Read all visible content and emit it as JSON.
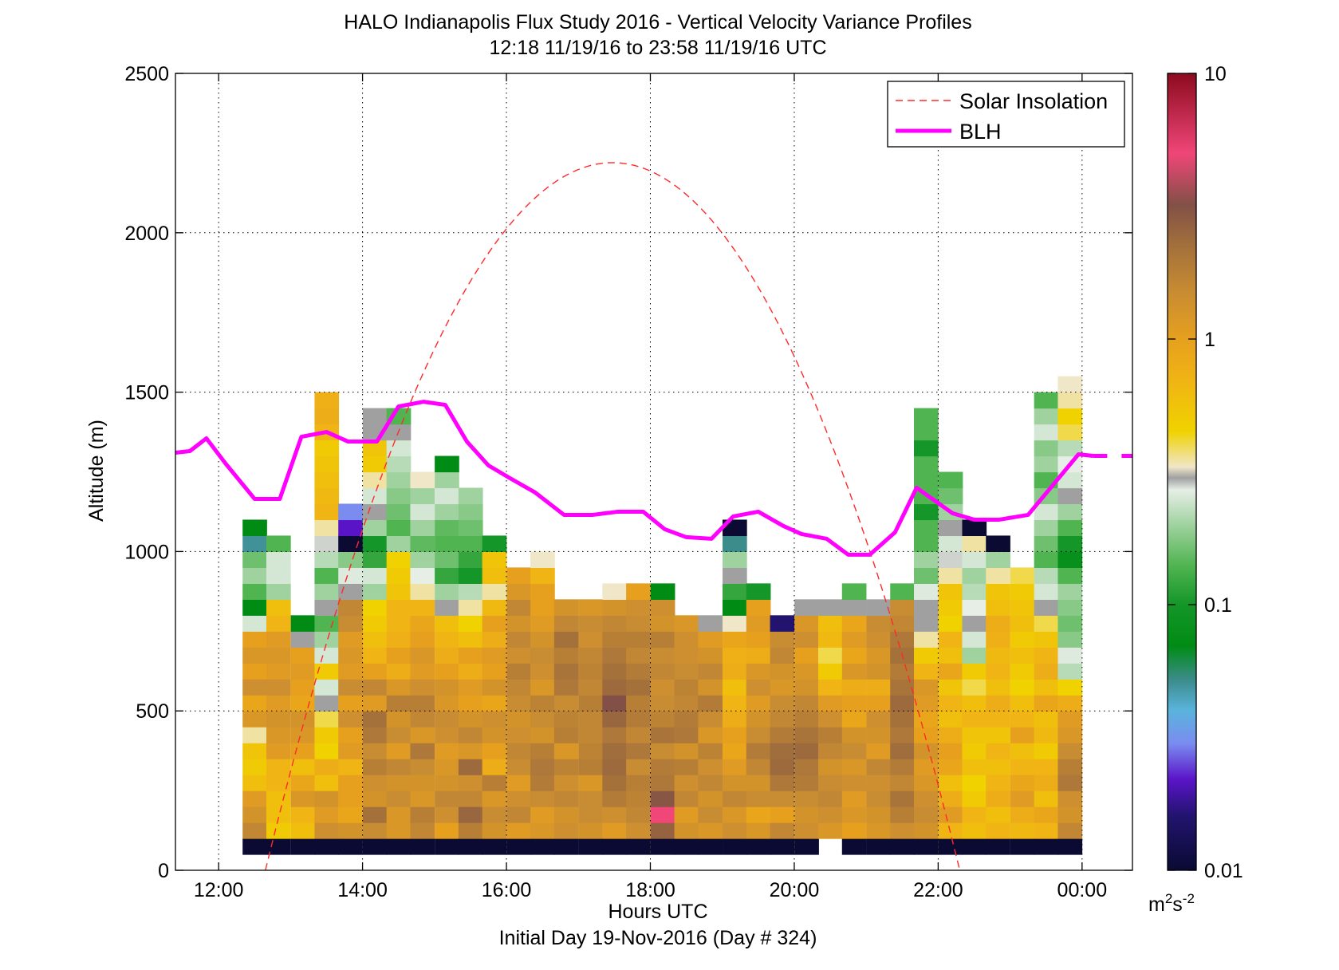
{
  "chart_data": {
    "type": "heatmap",
    "title": "HALO Indianapolis Flux Study 2016 - Vertical Velocity Variance Profiles",
    "subtitle": "12:18 11/19/16 to 23:58 11/19/16  UTC",
    "xlabel": "Hours UTC",
    "xlabel2": "Initial Day 19-Nov-2016 (Day # 324)",
    "ylabel": "Altitude (m)",
    "x_range_hours": [
      11.4,
      24.7
    ],
    "ylim": [
      0,
      2500
    ],
    "x_ticks": [
      {
        "value": 12,
        "label": "12:00"
      },
      {
        "value": 14,
        "label": "14:00"
      },
      {
        "value": 16,
        "label": "16:00"
      },
      {
        "value": 18,
        "label": "18:00"
      },
      {
        "value": 20,
        "label": "20:00"
      },
      {
        "value": 22,
        "label": "22:00"
      },
      {
        "value": 24,
        "label": "00:00"
      }
    ],
    "y_ticks": [
      0,
      500,
      1000,
      1500,
      2000,
      2500
    ],
    "grid": true,
    "legend_placement": "top-right",
    "legend": [
      {
        "name": "Solar Insolation",
        "color": "#ff2a2a",
        "style": "dashed"
      },
      {
        "name": "BLH",
        "color": "#ff00ff",
        "style": "solid"
      }
    ],
    "colorbar": {
      "scale": "log",
      "range": [
        0.01,
        10
      ],
      "tick_labels": [
        "0.01",
        "0.1",
        "1",
        "10"
      ],
      "unit_base": "m",
      "unit_sup1": "2",
      "unit_mid": "s",
      "unit_sup2": "-2",
      "stops": [
        {
          "v": 0.01,
          "c": "#0a0a33"
        },
        {
          "v": 0.016,
          "c": "#22146e"
        },
        {
          "v": 0.022,
          "c": "#5a14c8"
        },
        {
          "v": 0.03,
          "c": "#7a8cf0"
        },
        {
          "v": 0.04,
          "c": "#5ab4dc"
        },
        {
          "v": 0.052,
          "c": "#3c8c8c"
        },
        {
          "v": 0.07,
          "c": "#008c14"
        },
        {
          "v": 0.1,
          "c": "#149628"
        },
        {
          "v": 0.14,
          "c": "#50b450"
        },
        {
          "v": 0.2,
          "c": "#a0d2a0"
        },
        {
          "v": 0.27,
          "c": "#e6eee6"
        },
        {
          "v": 0.3,
          "c": "#a0a0a0"
        },
        {
          "v": 0.33,
          "c": "#f0e6c8"
        },
        {
          "v": 0.45,
          "c": "#f0d200"
        },
        {
          "v": 0.7,
          "c": "#f0b414"
        },
        {
          "v": 1.0,
          "c": "#e6a01e"
        },
        {
          "v": 1.5,
          "c": "#c88c32"
        },
        {
          "v": 2.3,
          "c": "#a06e3c"
        },
        {
          "v": 3.2,
          "c": "#825046"
        },
        {
          "v": 5.0,
          "c": "#f04678"
        },
        {
          "v": 10.0,
          "c": "#8c0a1e"
        }
      ]
    },
    "grid_cells": {
      "altitude_bin_m": 50,
      "time_bin_hours": 0.3333,
      "note_first_bin_center_m": 75,
      "columns": [
        {
          "t": 12.5,
          "v": [
            0.01,
            1.6,
            1.3,
            1.1,
            0.6,
            0.5,
            0.55,
            0.35,
            1.2,
            0.9,
            1.4,
            1.0,
            1.2,
            1.0,
            0.25,
            0.07,
            0.14,
            0.2,
            0.16,
            0.05,
            0.07
          ]
        },
        {
          "t": 12.83,
          "v": [
            0.01,
            0.5,
            0.6,
            0.6,
            0.7,
            0.7,
            1.1,
            1.2,
            1.3,
            1.1,
            1.4,
            1.1,
            1.2,
            1.1,
            0.7,
            0.6,
            0.2,
            0.25,
            0.25,
            0.14
          ]
        },
        {
          "t": 13.17,
          "v": [
            0.01,
            0.6,
            0.7,
            1.2,
            0.9,
            0.6,
            1.0,
            1.2,
            1.3,
            0.9,
            1.0,
            1.1,
            1.0,
            0.3,
            0.07
          ]
        },
        {
          "t": 13.5,
          "v": [
            0.01,
            1.4,
            1.1,
            1.3,
            0.6,
            0.8,
            0.45,
            0.5,
            0.4,
            0.3,
            0.25,
            0.5,
            0.25,
            0.2,
            0.14,
            0.3,
            0.2,
            0.14,
            0.22,
            0.28,
            0.35,
            0.7,
            0.65,
            0.6,
            0.55,
            0.5,
            0.7,
            0.8,
            0.75
          ]
        },
        {
          "t": 13.83,
          "v": [
            0.01,
            1.3,
            0.9,
            1.0,
            1.0,
            0.7,
            1.1,
            1.0,
            1.4,
            1.0,
            1.5,
            1.1,
            1.2,
            1.1,
            1.5,
            1.6,
            0.3,
            0.26,
            0.18,
            0.01,
            0.022,
            0.03
          ]
        },
        {
          "t": 14.17,
          "v": [
            0.01,
            1.5,
            2.2,
            1.3,
            1.4,
            1.8,
            1.5,
            2.0,
            2.2,
            1.1,
            1.6,
            1.0,
            0.7,
            0.6,
            0.5,
            0.45,
            0.2,
            0.25,
            0.12,
            0.1,
            0.2,
            0.3,
            0.25,
            0.35,
            0.5,
            0.55,
            0.3,
            0.3
          ]
        },
        {
          "t": 14.5,
          "v": [
            0.01,
            1.2,
            1.2,
            1.5,
            1.3,
            1.6,
            1.1,
            1.5,
            1.3,
            1.8,
            1.2,
            0.8,
            1.0,
            0.75,
            0.7,
            0.7,
            0.55,
            0.5,
            0.45,
            0.2,
            0.14,
            0.16,
            0.18,
            0.2,
            0.22,
            0.25,
            0.3,
            0.14
          ]
        },
        {
          "t": 14.83,
          "v": [
            0.01,
            1.6,
            1.8,
            1.2,
            1.3,
            1.5,
            2.0,
            1.2,
            1.6,
            1.8,
            1.4,
            1.1,
            1.2,
            1.0,
            0.9,
            0.7,
            0.35,
            0.27,
            0.2,
            0.15,
            0.2,
            0.25,
            0.2,
            0.33
          ]
        },
        {
          "t": 15.17,
          "v": [
            0.01,
            1.0,
            1.4,
            1.6,
            1.3,
            1.2,
            1.1,
            1.4,
            1.5,
            1.2,
            1.3,
            1.0,
            0.8,
            0.7,
            0.6,
            0.3,
            0.2,
            0.12,
            0.16,
            0.14,
            0.15,
            0.2,
            0.25,
            0.2,
            0.07
          ]
        },
        {
          "t": 15.5,
          "v": [
            0.01,
            1.8,
            2.5,
            1.6,
            1.4,
            2.4,
            1.2,
            1.6,
            1.3,
            1.0,
            1.1,
            0.8,
            1.0,
            0.6,
            0.45,
            0.35,
            0.22,
            0.1,
            0.12,
            0.14,
            0.16,
            0.18,
            0.2
          ]
        },
        {
          "t": 15.83,
          "v": [
            0.01,
            1.3,
            1.5,
            1.2,
            1.8,
            0.8,
            1.0,
            1.3,
            1.4,
            0.9,
            1.3,
            1.0,
            1.1,
            0.8,
            1.0,
            0.65,
            0.35,
            0.6,
            0.55,
            0.1
          ]
        },
        {
          "t": 16.17,
          "v": [
            0.01,
            1.1,
            1.6,
            1.4,
            1.1,
            1.5,
            1.6,
            1.4,
            1.3,
            1.5,
            1.6,
            1.8,
            1.4,
            1.6,
            1.3,
            1.6,
            1.2,
            1.0
          ]
        },
        {
          "t": 16.5,
          "v": [
            0.01,
            1.2,
            1.1,
            1.5,
            1.9,
            2.0,
            1.8,
            1.3,
            1.5,
            1.7,
            1.2,
            1.4,
            1.5,
            1.3,
            1.1,
            1.0,
            1.0,
            0.7,
            0.33
          ]
        },
        {
          "t": 16.83,
          "v": [
            0.01,
            1.4,
            1.3,
            1.6,
            1.4,
            1.7,
            1.2,
            1.8,
            1.7,
            1.5,
            2.0,
            2.1,
            1.8,
            2.2,
            1.6,
            1.3
          ]
        },
        {
          "t": 17.17,
          "v": [
            0.01,
            1.3,
            1.5,
            1.5,
            1.2,
            1.8,
            1.7,
            1.6,
            1.6,
            1.8,
            1.6,
            1.7,
            1.6,
            1.4,
            1.5,
            1.2
          ]
        },
        {
          "t": 17.5,
          "v": [
            0.01,
            1.1,
            1.4,
            1.9,
            2.2,
            2.4,
            2.3,
            2.0,
            2.5,
            3.2,
            2.4,
            2.2,
            2.0,
            1.8,
            1.6,
            1.3,
            0.33
          ]
        },
        {
          "t": 17.83,
          "v": [
            0.01,
            1.4,
            1.6,
            1.7,
            1.8,
            1.5,
            2.0,
            1.6,
            1.9,
            1.8,
            2.2,
            1.9,
            1.6,
            1.8,
            1.5,
            1.4,
            1.0
          ]
        },
        {
          "t": 18.17,
          "v": [
            0.01,
            2.6,
            5.0,
            3.0,
            2.0,
            1.9,
            1.5,
            2.1,
            1.7,
            1.5,
            1.4,
            1.6,
            1.5,
            1.8,
            1.3,
            1.4,
            0.07
          ]
        },
        {
          "t": 18.5,
          "v": [
            0.01,
            1.3,
            1.1,
            1.6,
            1.4,
            1.8,
            1.3,
            2.0,
            1.9,
            1.6,
            1.7,
            1.5,
            1.4,
            1.4,
            1.2
          ]
        },
        {
          "t": 18.83,
          "v": [
            0.01,
            1.2,
            1.5,
            1.3,
            1.6,
            1.4,
            1.7,
            1.2,
            1.5,
            1.9,
            1.3,
            1.6,
            1.3,
            1.1,
            0.3
          ]
        },
        {
          "t": 19.17,
          "v": [
            0.01,
            1.4,
            1.2,
            1.6,
            1.3,
            1.1,
            0.9,
            1.0,
            0.8,
            0.7,
            0.6,
            0.8,
            0.75,
            0.9,
            0.33,
            0.07,
            0.12,
            0.3,
            0.2,
            0.052,
            0.01
          ]
        },
        {
          "t": 19.5,
          "v": [
            0.01,
            1.2,
            0.9,
            1.5,
            1.3,
            1.6,
            1.9,
            1.5,
            1.3,
            1.1,
            1.4,
            1.2,
            0.8,
            1.0,
            1.1,
            1.0,
            0.1
          ]
        },
        {
          "t": 19.83,
          "v": [
            0.01,
            1.6,
            1.0,
            1.5,
            2.0,
            2.4,
            2.3,
            1.9,
            1.6,
            1.5,
            1.2,
            1.3,
            1.6,
            1.5,
            0.016
          ]
        },
        {
          "t": 20.17,
          "v": [
            0.01,
            1.4,
            1.3,
            1.5,
            1.9,
            2.0,
            2.4,
            2.1,
            1.8,
            1.6,
            1.3,
            1.2,
            1.0,
            1.4,
            1.2,
            0.3
          ]
        },
        {
          "t": 20.5,
          "v": [
            null,
            1.2,
            1.4,
            1.6,
            1.5,
            1.3,
            1.6,
            1.8,
            1.4,
            1.1,
            0.7,
            0.5,
            0.4,
            0.65,
            0.6,
            0.3
          ]
        },
        {
          "t": 20.83,
          "v": [
            0.01,
            1.0,
            1.2,
            1.1,
            1.4,
            1.2,
            1.5,
            1.3,
            0.9,
            1.0,
            0.8,
            1.2,
            0.9,
            1.1,
            0.9,
            0.3,
            0.14
          ]
        },
        {
          "t": 21.17,
          "v": [
            0.01,
            1.2,
            1.3,
            1.5,
            1.4,
            1.6,
            1.1,
            1.3,
            1.4,
            1.0,
            0.8,
            1.3,
            1.2,
            1.4,
            1.5,
            0.3
          ]
        },
        {
          "t": 21.5,
          "v": [
            0.01,
            1.4,
            1.8,
            2.1,
            1.6,
            1.9,
            2.3,
            2.0,
            2.2,
            2.4,
            2.1,
            1.9,
            2.2,
            2.0,
            1.6,
            1.5,
            0.14
          ]
        },
        {
          "t": 21.83,
          "v": [
            0.01,
            1.3,
            1.5,
            1.4,
            1.2,
            1.1,
            1.3,
            1.0,
            0.9,
            1.1,
            1.2,
            0.7,
            0.5,
            0.35,
            0.3,
            0.3,
            0.26,
            0.16,
            0.2,
            0.14,
            0.14,
            0.1,
            0.14,
            0.14,
            0.14,
            0.1,
            0.14,
            0.14
          ]
        },
        {
          "t": 22.17,
          "v": [
            0.01,
            0.7,
            1.1,
            0.8,
            0.6,
            0.9,
            1.0,
            0.8,
            0.6,
            0.7,
            0.55,
            0.9,
            0.6,
            0.7,
            0.45,
            0.5,
            0.55,
            0.35,
            0.28,
            0.25,
            0.3,
            0.2,
            0.16,
            0.14
          ]
        },
        {
          "t": 22.5,
          "v": [
            0.01,
            0.6,
            0.7,
            0.5,
            0.45,
            0.6,
            0.5,
            0.55,
            0.7,
            0.6,
            0.4,
            0.5,
            0.2,
            0.25,
            0.3,
            0.27,
            0.22,
            0.2,
            0.25,
            0.35,
            0.01
          ]
        },
        {
          "t": 22.83,
          "v": [
            0.01,
            0.7,
            0.6,
            0.8,
            0.7,
            0.6,
            0.7,
            0.55,
            0.7,
            0.8,
            0.6,
            0.7,
            0.65,
            0.75,
            0.8,
            0.6,
            0.55,
            0.35,
            0.2,
            0.01
          ]
        },
        {
          "t": 23.17,
          "v": [
            0.01,
            0.65,
            0.8,
            1.1,
            0.9,
            0.7,
            0.6,
            1.0,
            0.7,
            0.6,
            0.45,
            0.5,
            0.6,
            0.5,
            0.6,
            0.55,
            0.5,
            0.4
          ]
        },
        {
          "t": 23.5,
          "v": [
            0.01,
            0.7,
            0.9,
            0.6,
            0.8,
            0.7,
            0.5,
            0.65,
            0.6,
            0.9,
            0.6,
            0.8,
            0.7,
            0.55,
            0.4,
            0.3,
            0.25,
            0.22,
            0.14,
            0.16,
            0.2,
            0.25,
            0.18,
            0.14,
            0.2,
            0.18,
            0.25,
            0.2,
            0.14
          ]
        },
        {
          "t": 23.83,
          "v": [
            0.01,
            1.6,
            1.3,
            1.4,
            2.0,
            1.8,
            1.5,
            1.2,
            1.1,
            0.8,
            0.45,
            0.22,
            0.26,
            0.18,
            0.16,
            0.18,
            0.2,
            0.14,
            0.08,
            0.1,
            0.14,
            0.2,
            0.3,
            0.25,
            0.27,
            0.22,
            0.4,
            0.45,
            0.35,
            0.33
          ]
        }
      ]
    },
    "blh_series": {
      "name": "BLH",
      "x_hours": [
        11.4,
        11.6,
        11.83,
        12.1,
        12.5,
        12.85,
        13.15,
        13.5,
        13.8,
        14.2,
        14.5,
        14.85,
        15.15,
        15.45,
        15.75,
        16.05,
        16.4,
        16.8,
        17.2,
        17.55,
        17.9,
        18.2,
        18.5,
        18.85,
        19.15,
        19.5,
        19.85,
        20.1,
        20.45,
        20.75,
        21.05,
        21.4,
        21.7,
        21.95,
        22.2,
        22.5,
        22.85,
        23.25,
        23.6,
        23.95,
        24.15
      ],
      "y_m": [
        1310,
        1315,
        1355,
        1275,
        1165,
        1165,
        1360,
        1375,
        1345,
        1345,
        1455,
        1470,
        1460,
        1345,
        1270,
        1230,
        1185,
        1115,
        1115,
        1125,
        1125,
        1070,
        1045,
        1040,
        1110,
        1125,
        1080,
        1055,
        1040,
        990,
        990,
        1060,
        1200,
        1160,
        1120,
        1100,
        1100,
        1115,
        1210,
        1305,
        1300
      ],
      "dashed_extension_x_hours": [
        24.15,
        24.7
      ],
      "dashed_extension_y_m": [
        1300,
        1300
      ]
    },
    "solar_insolation_series": {
      "name": "Solar Insolation",
      "start_hour": 12.65,
      "end_hour": 22.3,
      "peak_hour": 17.475,
      "peak_altitude_equivalent_m": 2220
    }
  }
}
